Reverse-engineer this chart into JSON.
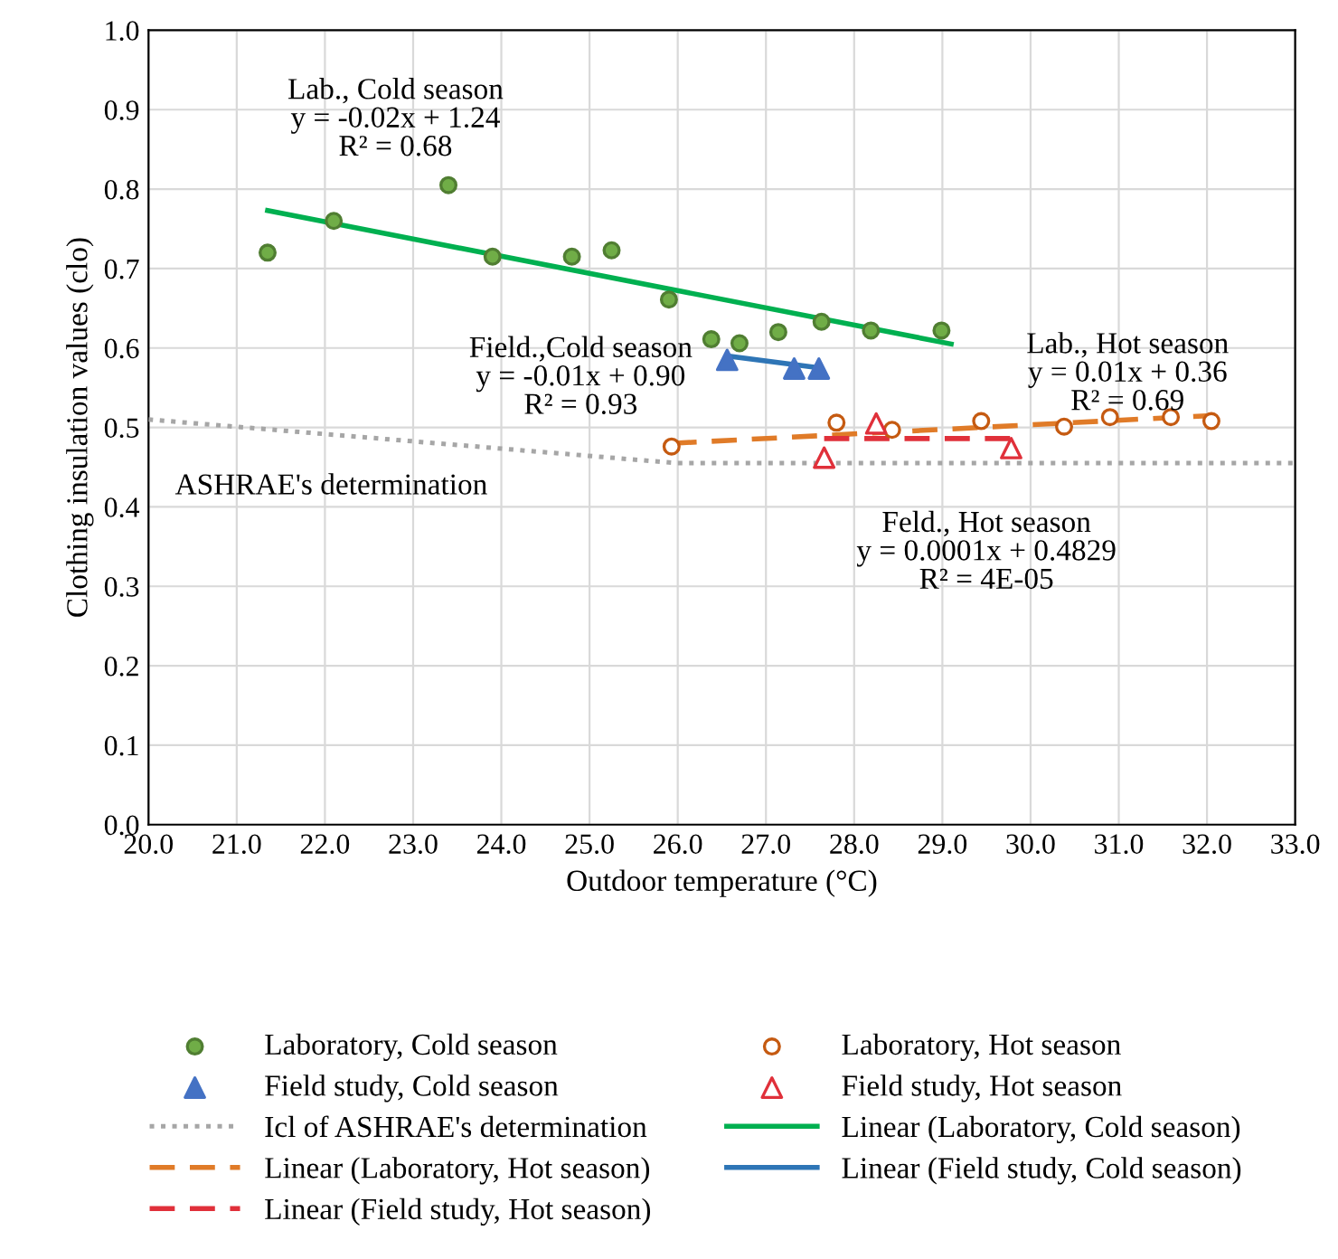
{
  "chart_data": {
    "type": "scatter",
    "xlabel": "Outdoor temperature (°C)",
    "ylabel": "Clothing insulation values (clo)",
    "xlim": [
      20,
      33
    ],
    "ylim": [
      0,
      1
    ],
    "xticks": [
      {
        "value": 20,
        "label": "20.0"
      },
      {
        "value": 21,
        "label": "21.0"
      },
      {
        "value": 22,
        "label": "22.0"
      },
      {
        "value": 23,
        "label": "23.0"
      },
      {
        "value": 24,
        "label": "24.0"
      },
      {
        "value": 25,
        "label": "25.0"
      },
      {
        "value": 26,
        "label": "26.0"
      },
      {
        "value": 27,
        "label": "27.0"
      },
      {
        "value": 28,
        "label": "28.0"
      },
      {
        "value": 29,
        "label": "29.0"
      },
      {
        "value": 30,
        "label": "30.0"
      },
      {
        "value": 31,
        "label": "31.0"
      },
      {
        "value": 32,
        "label": "32.0"
      },
      {
        "value": 33,
        "label": "33.0"
      }
    ],
    "yticks": [
      {
        "value": 0,
        "label": "0.0"
      },
      {
        "value": 0.1,
        "label": "0.1"
      },
      {
        "value": 0.2,
        "label": "0.2"
      },
      {
        "value": 0.3,
        "label": "0.3"
      },
      {
        "value": 0.4,
        "label": "0.4"
      },
      {
        "value": 0.5,
        "label": "0.5"
      },
      {
        "value": 0.6,
        "label": "0.6"
      },
      {
        "value": 0.7,
        "label": "0.7"
      },
      {
        "value": 0.8,
        "label": "0.8"
      },
      {
        "value": 0.9,
        "label": "0.9"
      },
      {
        "value": 1.0,
        "label": "1.0"
      }
    ],
    "grid": true,
    "legend": "bottom",
    "series": [
      {
        "name": "Laboratory, Cold season",
        "marker": "circle",
        "color": "#70ad47",
        "x": [
          21.35,
          22.1,
          23.4,
          23.9,
          24.8,
          25.25,
          25.9,
          26.38,
          26.7,
          27.14,
          27.63,
          28.19,
          28.99
        ],
        "values": [
          0.72,
          0.76,
          0.805,
          0.715,
          0.715,
          0.723,
          0.661,
          0.611,
          0.606,
          0.62,
          0.633,
          0.622,
          0.622
        ]
      },
      {
        "name": "Laboratory, Hot season",
        "marker": "circle",
        "color": "#c55a11",
        "x": [
          25.93,
          27.8,
          28.43,
          29.44,
          30.38,
          30.9,
          31.59,
          32.05
        ],
        "values": [
          0.476,
          0.506,
          0.497,
          0.508,
          0.501,
          0.513,
          0.513,
          0.508
        ]
      },
      {
        "name": "Field study, Cold season",
        "marker": "triangle",
        "color": "#4472c4",
        "x": [
          26.56,
          27.32,
          27.6
        ],
        "values": [
          0.585,
          0.574,
          0.574
        ]
      },
      {
        "name": "Field study, Hot season",
        "marker": "triangle",
        "color": "#e0303a",
        "x": [
          27.66,
          28.25,
          29.78
        ],
        "values": [
          0.462,
          0.505,
          0.474
        ]
      },
      {
        "name": "Icl of ASHRAE's determination",
        "type": "line",
        "line_style": "dotted",
        "color": "#a6a6a6",
        "x": [
          20,
          26,
          33
        ],
        "values": [
          0.51,
          0.455,
          0.455
        ]
      },
      {
        "name": "Linear (Laboratory, Cold season)",
        "type": "line",
        "line_style": "solid",
        "color": "#00b050",
        "x": [
          21.35,
          29.1
        ],
        "values": [
          0.773,
          0.605
        ]
      },
      {
        "name": "Linear (Laboratory, Hot season)",
        "type": "line",
        "line_style": "dashed",
        "color": "#e07b28",
        "x": [
          25.93,
          32.05
        ],
        "values": [
          0.48,
          0.515
        ]
      },
      {
        "name": "Linear (Field study, Cold season)",
        "type": "line",
        "line_style": "solid",
        "color": "#2e75b6",
        "x": [
          26.56,
          27.6
        ],
        "values": [
          0.59,
          0.575
        ]
      },
      {
        "name": "Linear (Field study, Hot season)",
        "type": "line",
        "line_style": "dashed",
        "color": "#e0303a",
        "x": [
          27.66,
          29.78
        ],
        "values": [
          0.486,
          0.486
        ]
      }
    ],
    "annotations": [
      "Lab., Cold season\ny = -0.02x + 1.24\nR² = 0.68",
      "Field.,Cold season\ny = -0.01x + 0.90\nR² = 0.93",
      "Lab., Hot season\ny = 0.01x + 0.36\nR² = 0.69",
      "ASHRAE's determination",
      "Feld., Hot season\ny = 0.0001x + 0.4829\nR² = 4E-05"
    ]
  }
}
